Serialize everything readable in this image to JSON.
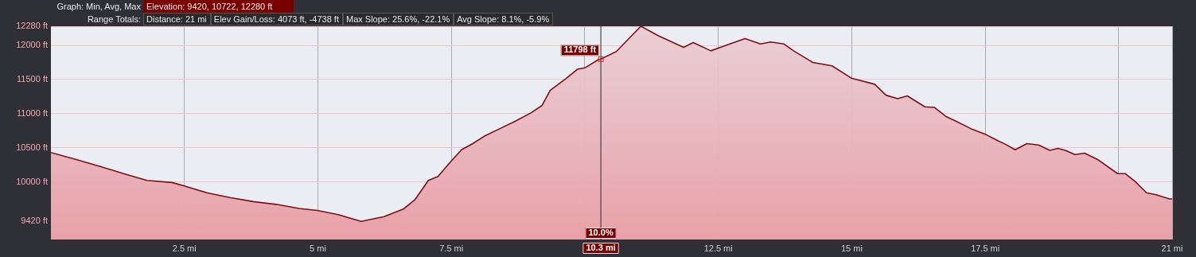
{
  "chart_data": {
    "type": "area",
    "annotations": [
      "Graph: Min, Avg, Max",
      "Elevation: 9420, 10722, 12280 ft",
      "Range Totals:",
      "Distance: 21 mi",
      "Elev Gain/Loss: 4073 ft, -4738 ft",
      "Max Slope: 25.6%, -22.1%",
      "Avg Slope: 8.1%, -5.9%",
      {
        "text": "11798 ft",
        "x": 10.3,
        "y": 11798
      },
      {
        "text": "10.0%",
        "x": 10.3
      }
    ],
    "ref_lines": [
      {
        "axis": "x",
        "value": 10.3,
        "label": "10.3 mi",
        "color": "#2a2a2a"
      }
    ],
    "series": [
      {
        "color": "#7b1016",
        "x": [
          0,
          0.46,
          0.9,
          1.4,
          1.8,
          2.27,
          2.5,
          2.92,
          3.35,
          3.79,
          4.22,
          4.65,
          4.99,
          5.38,
          5.81,
          6.24,
          6.6,
          6.82,
          7.07,
          7.25,
          7.47,
          7.69,
          7.9,
          8.12,
          8.41,
          8.7,
          8.99,
          9.2,
          9.35,
          9.64,
          9.86,
          10.0,
          10.25,
          10.3,
          10.59,
          11.05,
          11.38,
          11.85,
          12.03,
          12.36,
          12.57,
          13.0,
          13.29,
          13.48,
          13.73,
          13.91,
          14.27,
          14.63,
          14.99,
          15.43,
          15.64,
          15.86,
          16.04,
          16.37,
          16.55,
          16.76,
          16.95,
          17.23,
          17.52,
          17.74,
          17.88,
          18.06,
          18.28,
          18.5,
          18.71,
          18.86,
          19.0,
          19.18,
          19.36,
          19.62,
          19.98,
          20.12,
          20.3,
          20.52,
          20.7,
          20.95,
          21.0
        ],
        "values": [
          10430,
          10330,
          10230,
          10110,
          10020,
          9990,
          9940,
          9840,
          9770,
          9710,
          9670,
          9610,
          9580,
          9520,
          9420,
          9490,
          9600,
          9740,
          10020,
          10080,
          10280,
          10470,
          10560,
          10670,
          10780,
          10890,
          11010,
          11120,
          11340,
          11510,
          11650,
          11670,
          11790,
          11798,
          11910,
          12280,
          12140,
          11970,
          12040,
          11920,
          11980,
          12100,
          12020,
          12050,
          12020,
          11920,
          11750,
          11700,
          11520,
          11430,
          11270,
          11220,
          11260,
          11100,
          11090,
          10960,
          10890,
          10780,
          10690,
          10600,
          10550,
          10470,
          10560,
          10540,
          10460,
          10490,
          10460,
          10400,
          10420,
          10320,
          10120,
          10120,
          10010,
          9840,
          9810,
          9750,
          9750
        ]
      }
    ],
    "xlim": [
      0,
      21
    ],
    "xticks": [
      {
        "value": 2.5,
        "label": "2.5 mi"
      },
      {
        "value": 5,
        "label": "5 mi"
      },
      {
        "value": 7.5,
        "label": "7.5 mi"
      },
      {
        "value": 10,
        "label": null
      },
      {
        "value": 12.5,
        "label": "12.5 mi"
      },
      {
        "value": 15,
        "label": "15 mi"
      },
      {
        "value": 17.5,
        "label": "17.5 mi"
      },
      {
        "value": 20,
        "label": null
      },
      {
        "value": 21,
        "label": "21 mi"
      }
    ],
    "ylim": [
      9155,
      12280
    ],
    "yticks": [
      {
        "value": 9420,
        "label": "9420 ft"
      },
      {
        "value": 10000,
        "label": "10000 ft"
      },
      {
        "value": 10500,
        "label": "10500 ft"
      },
      {
        "value": 11000,
        "label": "11000 ft"
      },
      {
        "value": 11500,
        "label": "11500 ft"
      },
      {
        "value": 12000,
        "label": "12000 ft"
      },
      {
        "value": 12280,
        "label": "12280 ft"
      }
    ],
    "grid": true
  }
}
